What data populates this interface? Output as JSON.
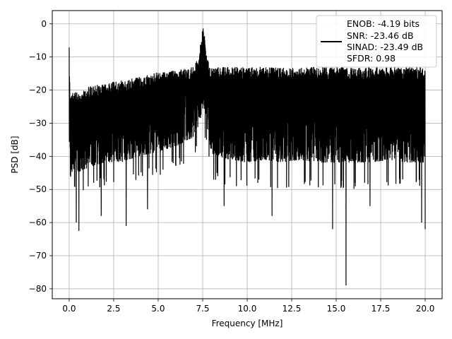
{
  "chart_data": {
    "type": "line",
    "xlabel": "Frequency [MHz]",
    "ylabel": "PSD [dB]",
    "xlim": [
      -0.95,
      20.95
    ],
    "ylim": [
      -83,
      4
    ],
    "x_ticks": [
      0.0,
      2.5,
      5.0,
      7.5,
      10.0,
      12.5,
      15.0,
      17.5,
      20.0
    ],
    "x_tick_labels": [
      "0.0",
      "2.5",
      "5.0",
      "7.5",
      "10.0",
      "12.5",
      "15.0",
      "17.5",
      "20.0"
    ],
    "y_ticks": [
      0,
      -10,
      -20,
      -30,
      -40,
      -50,
      -60,
      -70,
      -80
    ],
    "y_tick_labels": [
      "0",
      "−10",
      "−20",
      "−30",
      "−40",
      "−50",
      "−60",
      "−70",
      "−80"
    ],
    "grid": true,
    "legend_placement": "top-right",
    "line_color": "#000000",
    "series": [
      {
        "legend_lines": [
          "ENOB: -4.19 bits",
          "SNR: -23.46 dB",
          "SINAD: -23.49 dB",
          "SFDR: 0.98"
        ],
        "x": [
          0.0,
          0.02,
          0.05,
          0.1,
          0.2,
          0.5,
          1.0,
          2.0,
          3.0,
          4.0,
          5.0,
          6.0,
          7.0,
          7.3,
          7.5,
          7.55,
          7.6,
          7.7,
          7.9,
          8.0,
          9.0,
          10.0,
          11.0,
          12.0,
          13.0,
          14.0,
          15.0,
          16.0,
          17.0,
          18.0,
          19.0,
          20.0
        ],
        "upper_envelope": [
          -4.5,
          -14,
          -22,
          -21,
          -20,
          -21,
          -19,
          -18,
          -17,
          -16,
          -14.5,
          -14,
          -13,
          -9,
          -1.5,
          0,
          -3,
          -9,
          -13,
          -13,
          -13,
          -13,
          -13,
          -13,
          -13,
          -13,
          -13,
          -13,
          -13,
          -13,
          -13,
          -13
        ],
        "lower_envelope": [
          -41,
          -45,
          -50,
          -52,
          -48,
          -49,
          -48,
          -46,
          -46,
          -44,
          -43,
          -41,
          -38,
          -34,
          -30,
          -29,
          -30,
          -34,
          -40,
          -44,
          -46,
          -47,
          -46,
          -47,
          -46,
          -47,
          -47,
          -47,
          -47,
          -46,
          -47,
          -47
        ],
        "notable_dips": [
          {
            "x": 0.4,
            "y": -60
          },
          {
            "x": 0.55,
            "y": -62.5
          },
          {
            "x": 1.8,
            "y": -58
          },
          {
            "x": 3.2,
            "y": -61
          },
          {
            "x": 4.4,
            "y": -56
          },
          {
            "x": 8.7,
            "y": -55
          },
          {
            "x": 11.4,
            "y": -58
          },
          {
            "x": 14.8,
            "y": -62
          },
          {
            "x": 15.55,
            "y": -79
          },
          {
            "x": 16.9,
            "y": -55
          },
          {
            "x": 19.8,
            "y": -60
          },
          {
            "x": 20.0,
            "y": -62
          }
        ]
      }
    ]
  }
}
